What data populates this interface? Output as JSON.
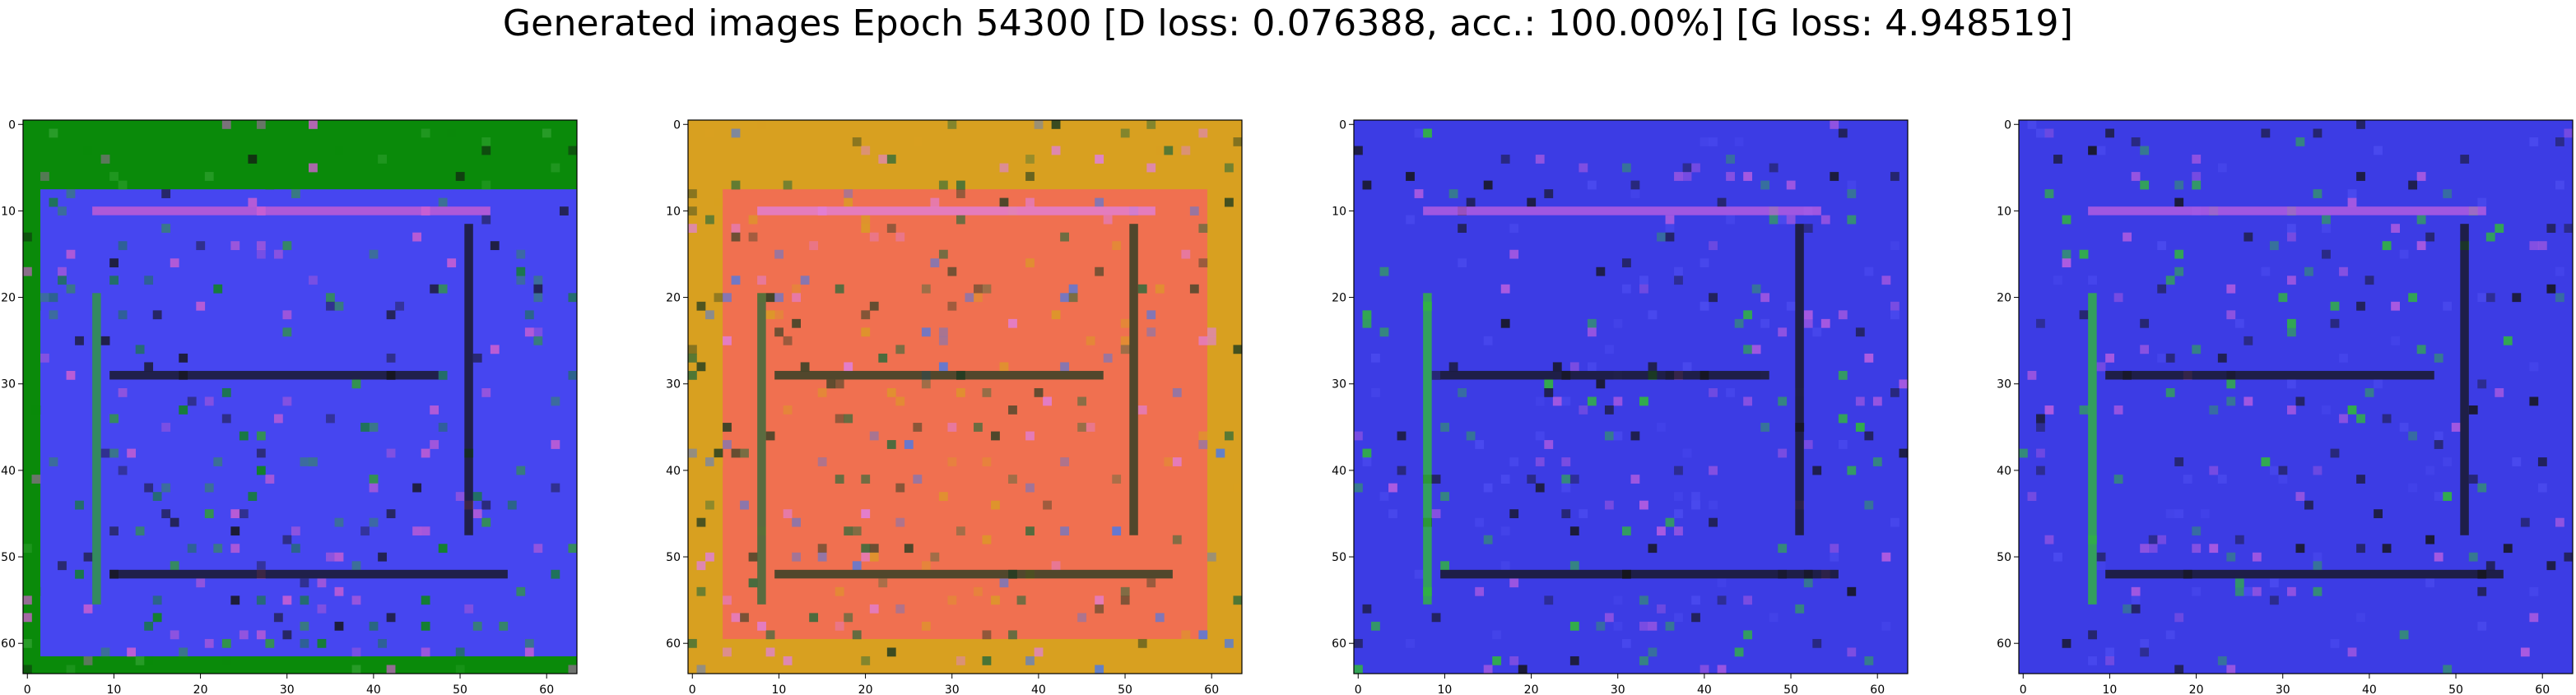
{
  "figure": {
    "title": "Generated images Epoch 54300 [D loss: 0.076388, acc.: 100.00%] [G loss: 4.948519]"
  },
  "chart_data": [
    {
      "type": "heatmap",
      "content": "generated RGB image (64x64 pixels)",
      "palette": {
        "background": "#0a8a0a",
        "main": "#4646f0",
        "accent": "#2fa02f",
        "dark": "#141414",
        "pink": "#d060d0"
      },
      "xlim": [
        0,
        64
      ],
      "ylim": [
        64,
        0
      ],
      "xticks": [
        "0",
        "10",
        "20",
        "30",
        "40",
        "50",
        "60"
      ],
      "yticks": [
        "0",
        "10",
        "20",
        "30",
        "40",
        "50",
        "60"
      ]
    },
    {
      "type": "heatmap",
      "content": "generated RGB image (64x64 pixels)",
      "palette": {
        "background": "#d8a020",
        "main": "#f07050",
        "accent": "#2a6a3a",
        "dark": "#1c3a20",
        "pink": "#e080e0",
        "blue": "#4a7ae8"
      },
      "xlim": [
        0,
        64
      ],
      "ylim": [
        64,
        0
      ],
      "xticks": [
        "0",
        "10",
        "20",
        "30",
        "40",
        "50",
        "60"
      ],
      "yticks": [
        "0",
        "10",
        "20",
        "30",
        "40",
        "50",
        "60"
      ]
    },
    {
      "type": "heatmap",
      "content": "generated RGB image (64x64 pixels)",
      "palette": {
        "background": "#4c4cf0",
        "main": "#3c3ce4",
        "accent": "#30c030",
        "dark": "#141414",
        "pink": "#c060e0"
      },
      "xlim": [
        0,
        64
      ],
      "ylim": [
        64,
        0
      ],
      "xticks": [
        "0",
        "10",
        "20",
        "30",
        "40",
        "50",
        "60"
      ],
      "yticks": [
        "0",
        "10",
        "20",
        "30",
        "40",
        "50",
        "60"
      ]
    },
    {
      "type": "heatmap",
      "content": "generated RGB image (64x64 pixels)",
      "palette": {
        "background": "#4c4cf0",
        "main": "#3c3ce4",
        "accent": "#30c030",
        "dark": "#141414",
        "pink": "#c060e0"
      },
      "xlim": [
        0,
        64
      ],
      "ylim": [
        64,
        0
      ],
      "xticks": [
        "0",
        "10",
        "20",
        "30",
        "40",
        "50",
        "60"
      ],
      "yticks": [
        "0",
        "10",
        "20",
        "30",
        "40",
        "50",
        "60"
      ]
    }
  ]
}
